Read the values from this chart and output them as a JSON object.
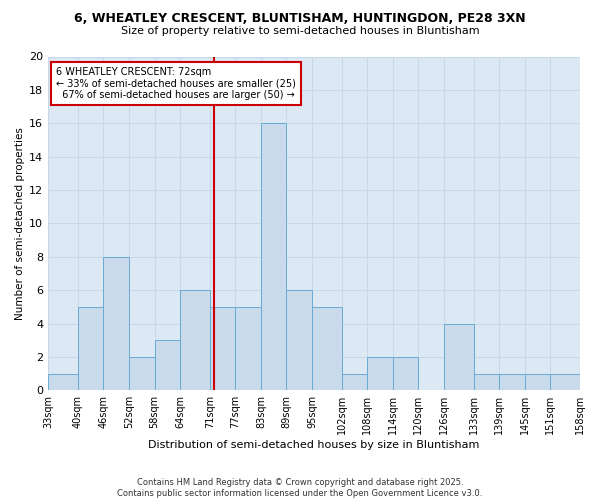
{
  "title": "6, WHEATLEY CRESCENT, BLUNTISHAM, HUNTINGDON, PE28 3XN",
  "subtitle": "Size of property relative to semi-detached houses in Bluntisham",
  "xlabel": "Distribution of semi-detached houses by size in Bluntisham",
  "ylabel": "Number of semi-detached properties",
  "bins": [
    33,
    40,
    46,
    52,
    58,
    64,
    71,
    77,
    83,
    89,
    95,
    102,
    108,
    114,
    120,
    126,
    133,
    139,
    145,
    151,
    158
  ],
  "counts": [
    1,
    5,
    8,
    2,
    3,
    6,
    5,
    5,
    16,
    6,
    5,
    1,
    2,
    2,
    0,
    4,
    1,
    1,
    1,
    1
  ],
  "tick_labels": [
    "33sqm",
    "40sqm",
    "46sqm",
    "52sqm",
    "58sqm",
    "64sqm",
    "71sqm",
    "77sqm",
    "83sqm",
    "89sqm",
    "95sqm",
    "102sqm",
    "108sqm",
    "114sqm",
    "120sqm",
    "126sqm",
    "133sqm",
    "139sqm",
    "145sqm",
    "151sqm",
    "158sqm"
  ],
  "bar_color": "#c9daea",
  "bar_edge_color": "#6aaad4",
  "property_value": 72,
  "property_label": "6 WHEATLEY CRESCENT: 72sqm",
  "pct_smaller": 33,
  "count_smaller": 25,
  "pct_larger": 67,
  "count_larger": 50,
  "vline_color": "#cc0000",
  "grid_color": "#c8d8e8",
  "ax_background": "#dce9f5",
  "fig_background": "#ffffff",
  "ylim": [
    0,
    20
  ],
  "yticks": [
    0,
    2,
    4,
    6,
    8,
    10,
    12,
    14,
    16,
    18,
    20
  ],
  "footer_line1": "Contains HM Land Registry data © Crown copyright and database right 2025.",
  "footer_line2": "Contains public sector information licensed under the Open Government Licence v3.0."
}
